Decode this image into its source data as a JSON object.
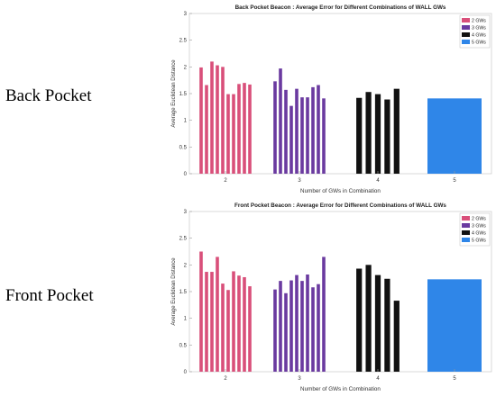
{
  "row_labels": {
    "back": "Back Pocket",
    "front": "Front Pocket"
  },
  "colors": {
    "gw2": "#d94f7a",
    "gw3": "#6a3aa0",
    "gw4": "#111111",
    "gw5": "#2f86e8"
  },
  "chart_data": [
    {
      "type": "bar",
      "title": "Back Pocket Beacon : Average Error for Different Combinations of WALL GWs",
      "xlabel": "Number of GWs in Combination",
      "ylabel": "Average Euclidean Distance",
      "ylim": [
        0,
        3
      ],
      "yticks": [
        0,
        0.5,
        1,
        1.5,
        2,
        2.5,
        3
      ],
      "xticks": [
        "2",
        "3",
        "4",
        "5"
      ],
      "legend": [
        "2 GWs",
        "3 GWs",
        "4 GWs",
        "5 GWs"
      ],
      "legend_position": "top-right",
      "grid": false,
      "series": [
        {
          "name": "2 GWs",
          "color": "#d94f7a",
          "values": [
            1.99,
            1.66,
            2.1,
            2.03,
            2.0,
            1.49,
            1.49,
            1.68,
            1.7,
            1.67
          ]
        },
        {
          "name": "3 GWs",
          "color": "#6a3aa0",
          "values": [
            1.73,
            1.97,
            1.57,
            1.27,
            1.59,
            1.43,
            1.43,
            1.62,
            1.66,
            1.41
          ]
        },
        {
          "name": "4 GWs",
          "color": "#111111",
          "values": [
            1.42,
            1.53,
            1.49,
            1.39,
            1.59
          ]
        },
        {
          "name": "5 GWs",
          "color": "#2f86e8",
          "values": [
            1.41
          ]
        }
      ]
    },
    {
      "type": "bar",
      "title": "Front Pocket Beacon : Average Error for Different Combinations of WALL GWs",
      "xlabel": "Number of GWs in Combination",
      "ylabel": "Average Euclidean Distance",
      "ylim": [
        0,
        3
      ],
      "yticks": [
        0,
        0.5,
        1,
        1.5,
        2,
        2.5,
        3
      ],
      "xticks": [
        "2",
        "3",
        "4",
        "5"
      ],
      "legend": [
        "2 GWs",
        "3 GWs",
        "4 GWs",
        "5 GWs"
      ],
      "legend_position": "top-right",
      "grid": false,
      "series": [
        {
          "name": "2 GWs",
          "color": "#d94f7a",
          "values": [
            2.25,
            1.87,
            1.87,
            2.15,
            1.65,
            1.53,
            1.88,
            1.8,
            1.77,
            1.6
          ]
        },
        {
          "name": "3 GWs",
          "color": "#6a3aa0",
          "values": [
            1.54,
            1.7,
            1.47,
            1.71,
            1.81,
            1.7,
            1.82,
            1.58,
            1.64,
            2.15
          ]
        },
        {
          "name": "4 GWs",
          "color": "#111111",
          "values": [
            1.93,
            2.0,
            1.81,
            1.74,
            1.33
          ]
        },
        {
          "name": "5 GWs",
          "color": "#2f86e8",
          "values": [
            1.73
          ]
        }
      ]
    }
  ]
}
